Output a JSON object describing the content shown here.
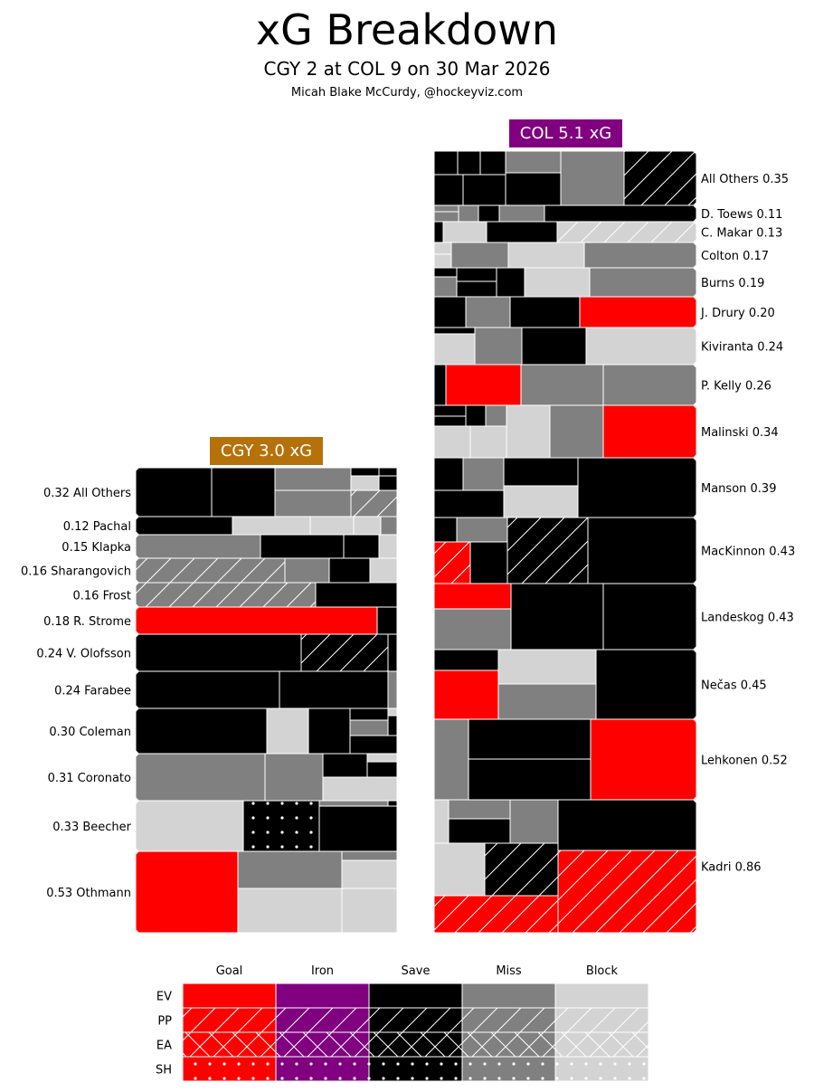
{
  "title": "xG Breakdown",
  "subtitle": "CGY 2 at COL 9 on 30 Mar 2026",
  "byline": "Micah Blake McCurdy, @hockeyviz.com",
  "colors": {
    "Goal": "#ff0000",
    "Iron": "#800080",
    "Save": "#000000",
    "Miss": "#808080",
    "Block": "#d3d3d3",
    "cgy_badge": "#b5720a",
    "col_badge": "#800080"
  },
  "chart_data": [
    {
      "type": "treemap",
      "team": "CGY",
      "badge": "CGY 3.0 xG",
      "total_xg": 3.0,
      "label_side": "left",
      "players": [
        {
          "label": "0.32 All Others",
          "xg": 0.32
        },
        {
          "label": "0.12 Pachal",
          "xg": 0.12
        },
        {
          "label": "0.15 Klapka",
          "xg": 0.15
        },
        {
          "label": "0.16 Sharangovich",
          "xg": 0.16
        },
        {
          "label": "0.16 Frost",
          "xg": 0.16
        },
        {
          "label": "0.18 R. Strome",
          "xg": 0.18
        },
        {
          "label": "0.24 V. Olofsson",
          "xg": 0.24
        },
        {
          "label": "0.24 Farabee",
          "xg": 0.24
        },
        {
          "label": "0.30 Coleman",
          "xg": 0.3
        },
        {
          "label": "0.31 Coronato",
          "xg": 0.31
        },
        {
          "label": "0.33 Beecher",
          "xg": 0.33
        },
        {
          "label": "0.53 Othmann",
          "xg": 0.53
        }
      ]
    },
    {
      "type": "treemap",
      "team": "COL",
      "badge": "COL 5.1 xG",
      "total_xg": 5.1,
      "label_side": "right",
      "players": [
        {
          "label": "All Others 0.35",
          "xg": 0.35
        },
        {
          "label": "D. Toews 0.11",
          "xg": 0.11
        },
        {
          "label": "C. Makar 0.13",
          "xg": 0.13
        },
        {
          "label": "Colton 0.17",
          "xg": 0.17
        },
        {
          "label": "Burns 0.19",
          "xg": 0.19
        },
        {
          "label": "J. Drury 0.20",
          "xg": 0.2
        },
        {
          "label": "Kiviranta 0.24",
          "xg": 0.24
        },
        {
          "label": "P. Kelly 0.26",
          "xg": 0.26
        },
        {
          "label": "Malinski 0.34",
          "xg": 0.34
        },
        {
          "label": "Manson 0.39",
          "xg": 0.39
        },
        {
          "label": "MacKinnon 0.43",
          "xg": 0.43
        },
        {
          "label": "Landeskog 0.43",
          "xg": 0.43
        },
        {
          "label": "Nečas 0.45",
          "xg": 0.45
        },
        {
          "label": "Lehkonen 0.52",
          "xg": 0.52
        },
        {
          "label": "Kadri 0.86",
          "xg": 0.86
        }
      ]
    }
  ],
  "legend": {
    "columns": [
      "Goal",
      "Iron",
      "Save",
      "Miss",
      "Block"
    ],
    "rows": [
      "EV",
      "PP",
      "EA",
      "SH"
    ]
  }
}
